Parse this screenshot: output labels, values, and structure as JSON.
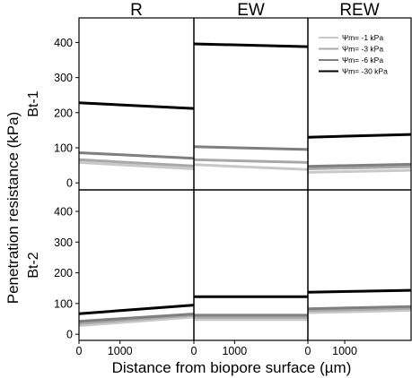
{
  "chart_data": {
    "type": "line",
    "columns": [
      "R",
      "EW",
      "REW"
    ],
    "rows": [
      "Bt-1",
      "Bt-2"
    ],
    "ylabel": "Penetration resistance (kPa)",
    "xlabel": "Distance from biopore surface (µm)",
    "ylim": [
      -20,
      470
    ],
    "xlim": [
      0,
      2800
    ],
    "y_ticks": [
      0,
      100,
      200,
      300,
      400
    ],
    "x_ticks": [
      0,
      1000
    ],
    "x_tick_labels": [
      "0",
      "1000"
    ],
    "legend": {
      "position": "top-right",
      "entries": [
        {
          "label": "Ψm= -1 kPa",
          "color": "#c8c8c8"
        },
        {
          "label": "Ψm= -3 kPa",
          "color": "#a8a8a8"
        },
        {
          "label": "Ψm= -6 kPa",
          "color": "#7f7f7f"
        },
        {
          "label": "Ψm= -30 kPa",
          "color": "#000000"
        }
      ]
    },
    "panels": [
      {
        "row": "Bt-1",
        "col": "R",
        "series": [
          {
            "color": "#c8c8c8",
            "x": [
              0,
              2800
            ],
            "y": [
              58,
              40
            ]
          },
          {
            "color": "#a8a8a8",
            "x": [
              0,
              2800
            ],
            "y": [
              66,
              48
            ]
          },
          {
            "color": "#7f7f7f",
            "x": [
              0,
              2800
            ],
            "y": [
              86,
              70
            ]
          },
          {
            "color": "#000000",
            "x": [
              0,
              2800
            ],
            "y": [
              228,
              212
            ]
          }
        ]
      },
      {
        "row": "Bt-1",
        "col": "EW",
        "series": [
          {
            "color": "#c8c8c8",
            "x": [
              0,
              2800
            ],
            "y": [
              52,
              38
            ]
          },
          {
            "color": "#a8a8a8",
            "x": [
              0,
              2800
            ],
            "y": [
              66,
              58
            ]
          },
          {
            "color": "#7f7f7f",
            "x": [
              0,
              2800
            ],
            "y": [
              103,
              95
            ]
          },
          {
            "color": "#000000",
            "x": [
              0,
              2800
            ],
            "y": [
              396,
              388
            ]
          }
        ]
      },
      {
        "row": "Bt-1",
        "col": "REW",
        "series": [
          {
            "color": "#c8c8c8",
            "x": [
              0,
              2800
            ],
            "y": [
              30,
              36
            ]
          },
          {
            "color": "#a8a8a8",
            "x": [
              0,
              2800
            ],
            "y": [
              40,
              46
            ]
          },
          {
            "color": "#7f7f7f",
            "x": [
              0,
              2800
            ],
            "y": [
              47,
              53
            ]
          },
          {
            "color": "#000000",
            "x": [
              0,
              2800
            ],
            "y": [
              130,
              138
            ]
          }
        ]
      },
      {
        "row": "Bt-2",
        "col": "R",
        "series": [
          {
            "color": "#c8c8c8",
            "x": [
              0,
              2800
            ],
            "y": [
              28,
              56
            ]
          },
          {
            "color": "#a8a8a8",
            "x": [
              0,
              2800
            ],
            "y": [
              35,
              62
            ]
          },
          {
            "color": "#7f7f7f",
            "x": [
              0,
              2800
            ],
            "y": [
              42,
              66
            ]
          },
          {
            "color": "#000000",
            "x": [
              0,
              2800
            ],
            "y": [
              67,
              95
            ]
          }
        ]
      },
      {
        "row": "Bt-2",
        "col": "EW",
        "series": [
          {
            "color": "#c8c8c8",
            "x": [
              0,
              2800
            ],
            "y": [
              48,
              48
            ]
          },
          {
            "color": "#a8a8a8",
            "x": [
              0,
              2800
            ],
            "y": [
              55,
              55
            ]
          },
          {
            "color": "#7f7f7f",
            "x": [
              0,
              2800
            ],
            "y": [
              62,
              62
            ]
          },
          {
            "color": "#000000",
            "x": [
              0,
              2800
            ],
            "y": [
              122,
              122
            ]
          }
        ]
      },
      {
        "row": "Bt-2",
        "col": "REW",
        "series": [
          {
            "color": "#c8c8c8",
            "x": [
              0,
              2800
            ],
            "y": [
              70,
              78
            ]
          },
          {
            "color": "#a8a8a8",
            "x": [
              0,
              2800
            ],
            "y": [
              77,
              84
            ]
          },
          {
            "color": "#7f7f7f",
            "x": [
              0,
              2800
            ],
            "y": [
              83,
              90
            ]
          },
          {
            "color": "#000000",
            "x": [
              0,
              2800
            ],
            "y": [
              137,
              143
            ]
          }
        ]
      }
    ]
  }
}
